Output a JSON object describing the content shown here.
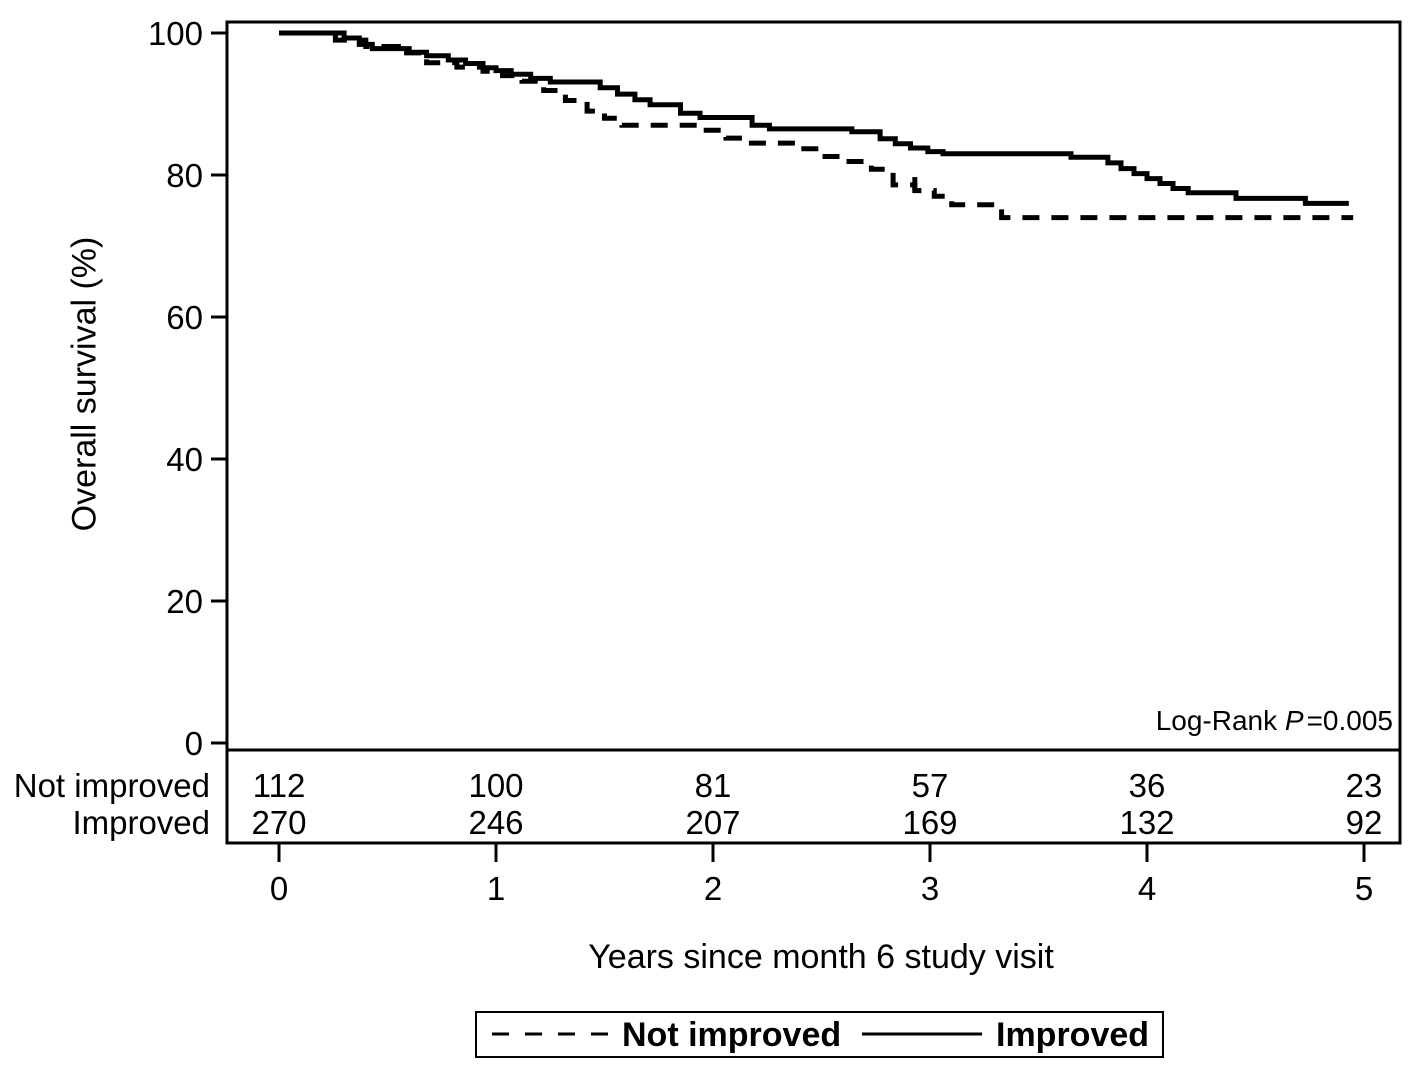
{
  "chart_data": {
    "type": "line",
    "subtype": "kaplan-meier-step-plot",
    "title": "",
    "xlabel": "Years since month 6 study visit",
    "ylabel": "Overall survival (%)",
    "xlim": [
      0,
      5
    ],
    "ylim": [
      0,
      100
    ],
    "grid": false,
    "xticks": [
      "0",
      "1",
      "2",
      "3",
      "4",
      "5"
    ],
    "yticks": [
      "0",
      "20",
      "40",
      "60",
      "80",
      "100"
    ],
    "annotation": {
      "prefix": "Log-Rank ",
      "p_symbol": "P",
      "value": "=0.005"
    },
    "legend": {
      "position": "bottom",
      "entries": [
        {
          "label": "Not improved",
          "style": "dashed"
        },
        {
          "label": "Improved",
          "style": "solid"
        }
      ]
    },
    "series": [
      {
        "name": "Not improved",
        "style": "dashed",
        "points": [
          [
            0.0,
            100
          ],
          [
            0.26,
            99.0
          ],
          [
            0.4,
            98.1
          ],
          [
            0.55,
            97.2
          ],
          [
            0.68,
            95.8
          ],
          [
            0.82,
            95.2
          ],
          [
            0.94,
            94.6
          ],
          [
            1.03,
            94.0
          ],
          [
            1.12,
            93.2
          ],
          [
            1.22,
            91.9
          ],
          [
            1.32,
            90.5
          ],
          [
            1.42,
            89.0
          ],
          [
            1.5,
            88.0
          ],
          [
            1.58,
            87.0
          ],
          [
            1.94,
            86.3
          ],
          [
            2.06,
            85.2
          ],
          [
            2.15,
            84.5
          ],
          [
            2.38,
            83.7
          ],
          [
            2.49,
            82.6
          ],
          [
            2.6,
            81.9
          ],
          [
            2.73,
            80.8
          ],
          [
            2.83,
            78.6
          ],
          [
            2.93,
            77.8
          ],
          [
            3.02,
            77.0
          ],
          [
            3.1,
            75.8
          ],
          [
            3.33,
            74.0
          ],
          [
            4.95,
            74.0
          ]
        ],
        "censor_marks": [
          [
            2.93,
            78.3
          ]
        ]
      },
      {
        "name": "Improved",
        "style": "solid",
        "points": [
          [
            0.0,
            100
          ],
          [
            0.3,
            99.3
          ],
          [
            0.37,
            98.4
          ],
          [
            0.43,
            97.8
          ],
          [
            0.6,
            97.3
          ],
          [
            0.68,
            96.8
          ],
          [
            0.78,
            96.2
          ],
          [
            0.86,
            95.7
          ],
          [
            0.94,
            95.1
          ],
          [
            1.0,
            94.7
          ],
          [
            1.07,
            94.2
          ],
          [
            1.16,
            93.6
          ],
          [
            1.25,
            93.1
          ],
          [
            1.48,
            92.3
          ],
          [
            1.56,
            91.4
          ],
          [
            1.64,
            90.6
          ],
          [
            1.71,
            89.9
          ],
          [
            1.85,
            88.7
          ],
          [
            1.94,
            88.1
          ],
          [
            2.18,
            87.0
          ],
          [
            2.26,
            86.5
          ],
          [
            2.64,
            86.1
          ],
          [
            2.77,
            85.1
          ],
          [
            2.84,
            84.4
          ],
          [
            2.91,
            83.8
          ],
          [
            2.99,
            83.3
          ],
          [
            3.06,
            83.0
          ],
          [
            3.65,
            82.5
          ],
          [
            3.82,
            81.7
          ],
          [
            3.88,
            80.9
          ],
          [
            3.94,
            80.2
          ],
          [
            4.0,
            79.5
          ],
          [
            4.06,
            78.8
          ],
          [
            4.12,
            78.1
          ],
          [
            4.19,
            77.5
          ],
          [
            4.41,
            76.7
          ],
          [
            4.73,
            76.0
          ],
          [
            4.93,
            76.0
          ]
        ],
        "censor_marks": []
      }
    ],
    "risk_table": {
      "rows": [
        {
          "label": "Not improved",
          "counts": [
            "112",
            "100",
            "81",
            "57",
            "36",
            "23"
          ]
        },
        {
          "label": "Improved",
          "counts": [
            "270",
            "246",
            "207",
            "169",
            "132",
            "92"
          ]
        }
      ]
    }
  }
}
